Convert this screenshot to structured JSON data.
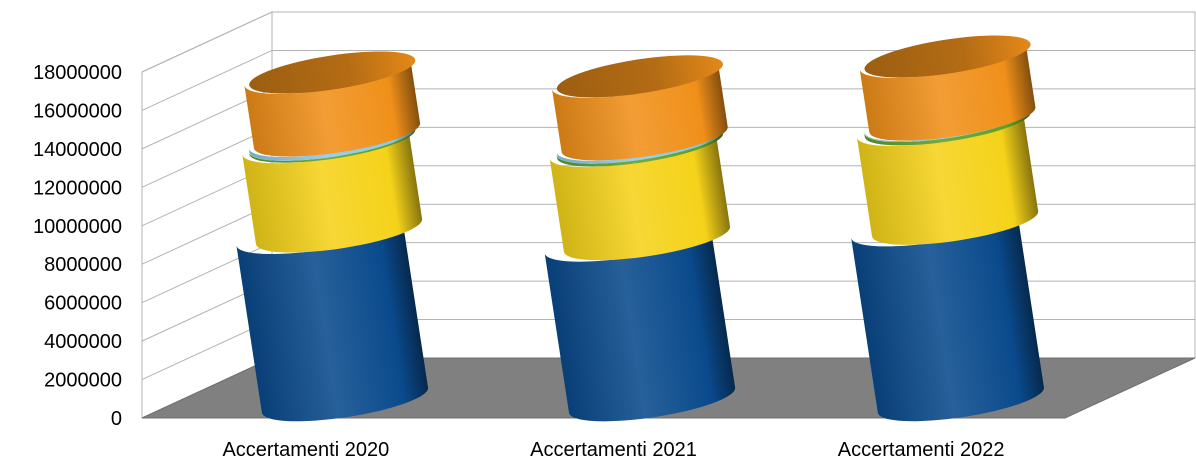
{
  "chart_data": {
    "type": "bar",
    "stacked": true,
    "style": "3d-cylinder",
    "categories": [
      "Accertamenti 2020",
      "Accertamenti 2021",
      "Accertamenti 2022"
    ],
    "series": [
      {
        "color": "#0a4a8c",
        "values": [
          8800000,
          8400000,
          9200000
        ]
      },
      {
        "color": "#f5d21a",
        "values": [
          4700000,
          4900000,
          5200000
        ]
      },
      {
        "color": "#5aa02c",
        "values": [
          100000,
          150000,
          180000
        ]
      },
      {
        "color": "#8cc8e6",
        "values": [
          200000,
          150000,
          50000
        ]
      },
      {
        "color": "#f0901a",
        "values": [
          3300000,
          3300000,
          3300000
        ]
      }
    ],
    "yticks": [
      "0",
      "2000000",
      "4000000",
      "6000000",
      "8000000",
      "10000000",
      "12000000",
      "14000000",
      "16000000",
      "18000000"
    ],
    "ylim": [
      0,
      18000000
    ],
    "grid": true,
    "legend": "none"
  }
}
